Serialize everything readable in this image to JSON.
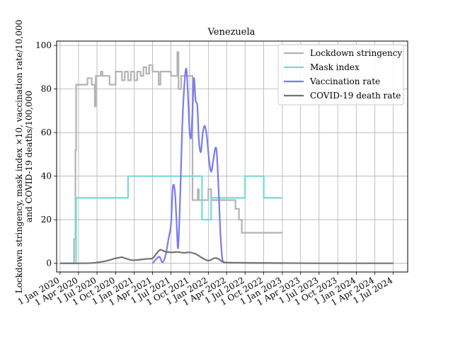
{
  "chart_data": {
    "type": "line",
    "title": "Venezuela",
    "ylabel_line1": "Lockdown stringency, mask index ×10, vaccination rate/10,000",
    "ylabel_line2": "and COVID-19 deaths/100,000",
    "xlabel": "",
    "ylim": [
      -4,
      102
    ],
    "xlim": [
      "2019-12-15",
      "2024-09-10"
    ],
    "grid": true,
    "legend_position": "top-right",
    "y_ticks": [
      0,
      20,
      40,
      60,
      80,
      100
    ],
    "x_ticks": [
      {
        "date": "2020-01-01",
        "label": "1 Jan 2020"
      },
      {
        "date": "2020-04-01",
        "label": "1 Apr 2020"
      },
      {
        "date": "2020-07-01",
        "label": "1 Jul 2020"
      },
      {
        "date": "2020-10-01",
        "label": "1 Oct 2020"
      },
      {
        "date": "2021-01-01",
        "label": "1 Jan 2021"
      },
      {
        "date": "2021-04-01",
        "label": "1 Apr 2021"
      },
      {
        "date": "2021-07-01",
        "label": "1 Jul 2021"
      },
      {
        "date": "2021-10-01",
        "label": "1 Oct 2021"
      },
      {
        "date": "2022-01-01",
        "label": "1 Jan 2022"
      },
      {
        "date": "2022-04-01",
        "label": "1 Apr 2022"
      },
      {
        "date": "2022-07-01",
        "label": "1 Jul 2022"
      },
      {
        "date": "2022-10-01",
        "label": "1 Oct 2022"
      },
      {
        "date": "2023-01-01",
        "label": "1 Jan 2023"
      },
      {
        "date": "2023-04-01",
        "label": "1 Apr 2023"
      },
      {
        "date": "2023-07-01",
        "label": "1 Jul 2023"
      },
      {
        "date": "2023-10-01",
        "label": "1 Oct 2023"
      },
      {
        "date": "2024-01-01",
        "label": "1 Jan 2024"
      },
      {
        "date": "2024-04-01",
        "label": "1 Apr 2024"
      },
      {
        "date": "2024-07-01",
        "label": "1 Jul 2024"
      }
    ],
    "series": [
      {
        "name": "Lockdown stringency",
        "color": "#b3b3b3",
        "step": true,
        "points": [
          [
            "2020-01-01",
            0
          ],
          [
            "2020-03-10",
            0
          ],
          [
            "2020-03-10",
            11
          ],
          [
            "2020-03-17",
            11
          ],
          [
            "2020-03-17",
            52
          ],
          [
            "2020-03-20",
            52
          ],
          [
            "2020-03-20",
            82
          ],
          [
            "2020-05-15",
            82
          ],
          [
            "2020-05-15",
            85
          ],
          [
            "2020-06-05",
            85
          ],
          [
            "2020-06-05",
            82
          ],
          [
            "2020-06-20",
            82
          ],
          [
            "2020-06-20",
            72
          ],
          [
            "2020-06-25",
            72
          ],
          [
            "2020-06-25",
            86
          ],
          [
            "2020-07-20",
            86
          ],
          [
            "2020-07-20",
            88
          ],
          [
            "2020-07-28",
            88
          ],
          [
            "2020-07-28",
            86
          ],
          [
            "2020-09-01",
            86
          ],
          [
            "2020-09-01",
            82
          ],
          [
            "2020-10-01",
            82
          ],
          [
            "2020-10-01",
            88
          ],
          [
            "2020-11-01",
            88
          ],
          [
            "2020-11-01",
            84
          ],
          [
            "2020-11-15",
            84
          ],
          [
            "2020-11-15",
            88
          ],
          [
            "2020-12-01",
            88
          ],
          [
            "2020-12-01",
            84
          ],
          [
            "2020-12-15",
            84
          ],
          [
            "2020-12-15",
            88
          ],
          [
            "2021-01-01",
            88
          ],
          [
            "2021-01-01",
            84
          ],
          [
            "2021-01-15",
            84
          ],
          [
            "2021-01-15",
            88
          ],
          [
            "2021-02-01",
            88
          ],
          [
            "2021-02-01",
            86
          ],
          [
            "2021-02-15",
            86
          ],
          [
            "2021-02-15",
            90
          ],
          [
            "2021-03-01",
            90
          ],
          [
            "2021-03-01",
            87
          ],
          [
            "2021-03-15",
            87
          ],
          [
            "2021-03-15",
            91
          ],
          [
            "2021-04-01",
            91
          ],
          [
            "2021-04-01",
            88
          ],
          [
            "2021-05-01",
            88
          ],
          [
            "2021-05-01",
            82
          ],
          [
            "2021-05-10",
            82
          ],
          [
            "2021-05-10",
            88
          ],
          [
            "2021-07-01",
            88
          ],
          [
            "2021-07-01",
            86
          ],
          [
            "2021-08-01",
            86
          ],
          [
            "2021-08-01",
            97
          ],
          [
            "2021-08-07",
            97
          ],
          [
            "2021-08-07",
            80
          ],
          [
            "2021-08-20",
            80
          ],
          [
            "2021-08-20",
            86
          ],
          [
            "2021-10-15",
            86
          ],
          [
            "2021-10-15",
            29
          ],
          [
            "2021-11-10",
            29
          ],
          [
            "2021-11-10",
            34
          ],
          [
            "2021-11-15",
            34
          ],
          [
            "2021-11-15",
            29
          ],
          [
            "2022-01-01",
            29
          ],
          [
            "2022-01-01",
            34
          ],
          [
            "2022-01-15",
            34
          ],
          [
            "2022-01-15",
            29
          ],
          [
            "2022-05-15",
            29
          ],
          [
            "2022-05-15",
            25
          ],
          [
            "2022-06-01",
            25
          ],
          [
            "2022-06-01",
            20
          ],
          [
            "2022-06-15",
            20
          ],
          [
            "2022-06-15",
            14
          ],
          [
            "2023-01-01",
            14
          ]
        ]
      },
      {
        "name": "Mask index",
        "color": "#77d8d8",
        "step": true,
        "points": [
          [
            "2020-01-01",
            0
          ],
          [
            "2020-03-20",
            0
          ],
          [
            "2020-03-20",
            30
          ],
          [
            "2020-12-01",
            30
          ],
          [
            "2020-12-01",
            40
          ],
          [
            "2021-12-01",
            40
          ],
          [
            "2021-12-01",
            20
          ],
          [
            "2022-01-15",
            20
          ],
          [
            "2022-01-15",
            30
          ],
          [
            "2022-07-01",
            30
          ],
          [
            "2022-07-01",
            40
          ],
          [
            "2022-10-01",
            40
          ],
          [
            "2022-10-01",
            30
          ],
          [
            "2023-01-01",
            30
          ]
        ]
      },
      {
        "name": "Vaccination rate",
        "color": "#7b7bef",
        "step": false,
        "points": [
          [
            "2021-04-01",
            0
          ],
          [
            "2021-04-20",
            2
          ],
          [
            "2021-05-05",
            3
          ],
          [
            "2021-05-20",
            0.5
          ],
          [
            "2021-06-05",
            4
          ],
          [
            "2021-06-20",
            12
          ],
          [
            "2021-07-01",
            18
          ],
          [
            "2021-07-10",
            35
          ],
          [
            "2021-07-20",
            33
          ],
          [
            "2021-07-28",
            20
          ],
          [
            "2021-08-05",
            7
          ],
          [
            "2021-08-15",
            30
          ],
          [
            "2021-08-25",
            62
          ],
          [
            "2021-09-05",
            82
          ],
          [
            "2021-09-15",
            89
          ],
          [
            "2021-09-25",
            72
          ],
          [
            "2021-10-01",
            60
          ],
          [
            "2021-10-08",
            58
          ],
          [
            "2021-10-15",
            70
          ],
          [
            "2021-10-22",
            85
          ],
          [
            "2021-10-30",
            75
          ],
          [
            "2021-11-08",
            72
          ],
          [
            "2021-11-15",
            57
          ],
          [
            "2021-11-25",
            51
          ],
          [
            "2021-12-05",
            60
          ],
          [
            "2021-12-15",
            63
          ],
          [
            "2021-12-25",
            58
          ],
          [
            "2022-01-05",
            47
          ],
          [
            "2022-01-15",
            42
          ],
          [
            "2022-01-25",
            47
          ],
          [
            "2022-02-05",
            53
          ],
          [
            "2022-02-12",
            50
          ],
          [
            "2022-02-20",
            35
          ],
          [
            "2022-03-01",
            15
          ],
          [
            "2022-03-10",
            3
          ],
          [
            "2022-03-20",
            0.5
          ],
          [
            "2022-05-01",
            0.3
          ],
          [
            "2022-08-01",
            0.2
          ],
          [
            "2022-11-01",
            0.1
          ],
          [
            "2023-01-01",
            0
          ]
        ]
      },
      {
        "name": "COVID-19 death rate",
        "color": "#737373",
        "step": false,
        "points": [
          [
            "2020-01-01",
            0
          ],
          [
            "2020-05-01",
            0
          ],
          [
            "2020-06-15",
            0.2
          ],
          [
            "2020-08-01",
            0.8
          ],
          [
            "2020-09-01",
            1.5
          ],
          [
            "2020-10-01",
            2.3
          ],
          [
            "2020-10-20",
            2.6
          ],
          [
            "2020-11-01",
            2.8
          ],
          [
            "2020-11-20",
            2.2
          ],
          [
            "2020-12-15",
            1.5
          ],
          [
            "2021-01-01",
            1.4
          ],
          [
            "2021-02-01",
            1.7
          ],
          [
            "2021-03-01",
            2.0
          ],
          [
            "2021-04-01",
            2.3
          ],
          [
            "2021-04-20",
            4.5
          ],
          [
            "2021-05-10",
            6.2
          ],
          [
            "2021-06-01",
            5.4
          ],
          [
            "2021-07-01",
            5.0
          ],
          [
            "2021-08-01",
            5.2
          ],
          [
            "2021-09-01",
            4.8
          ],
          [
            "2021-10-01",
            5.0
          ],
          [
            "2021-11-01",
            4.2
          ],
          [
            "2021-12-01",
            2.5
          ],
          [
            "2022-01-01",
            1.2
          ],
          [
            "2022-02-01",
            2.4
          ],
          [
            "2022-02-20",
            2.0
          ],
          [
            "2022-03-10",
            0.8
          ],
          [
            "2022-04-01",
            0.3
          ],
          [
            "2022-07-01",
            0.2
          ],
          [
            "2022-10-01",
            0.1
          ],
          [
            "2023-01-01",
            0.1
          ],
          [
            "2023-06-01",
            0
          ],
          [
            "2024-07-01",
            0
          ]
        ]
      }
    ]
  }
}
